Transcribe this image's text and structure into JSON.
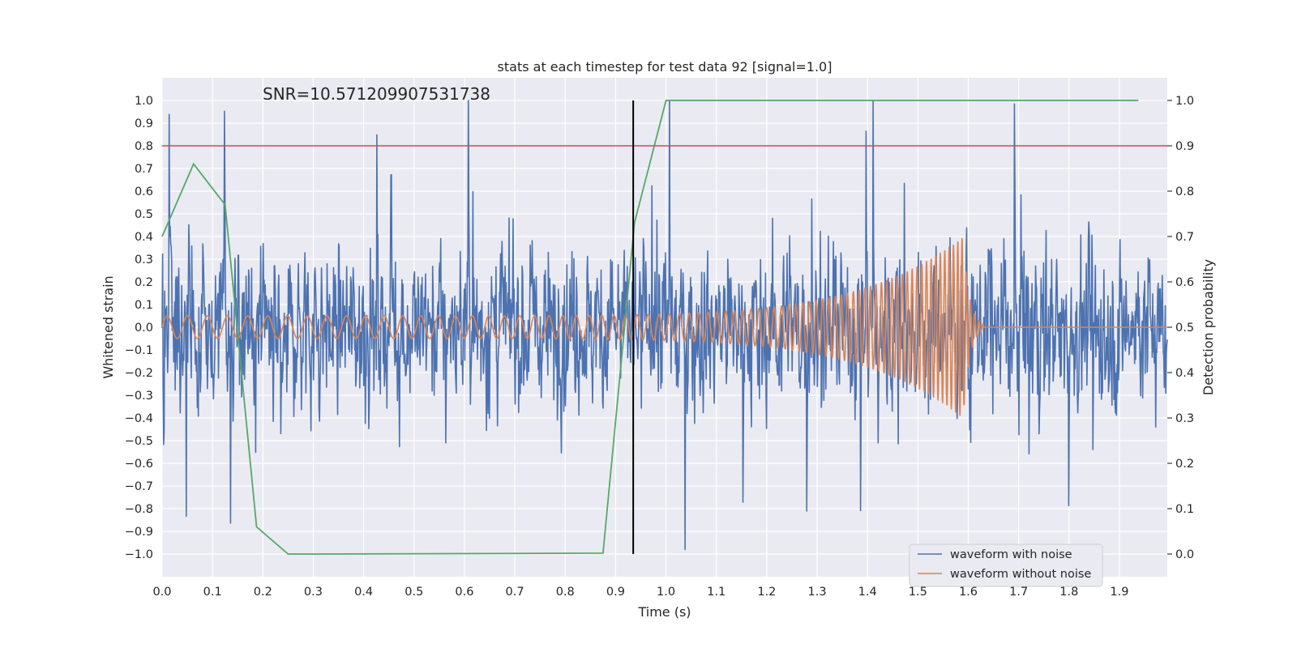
{
  "chart_data": {
    "type": "line",
    "title": "stats at each timestep for test data 92 [signal=1.0]",
    "annotation": "SNR=10.571209907531738",
    "xlabel": "Time (s)",
    "ylabel": "Whitened strain",
    "ylabel_right": "Detection probability",
    "xlim": [
      0.0,
      1.995
    ],
    "ylim": [
      -1.1,
      1.1
    ],
    "ylim_right": [
      -0.05,
      1.05
    ],
    "x_ticks": [
      "0.0",
      "0.1",
      "0.2",
      "0.3",
      "0.4",
      "0.5",
      "0.6",
      "0.7",
      "0.8",
      "0.9",
      "1.0",
      "1.1",
      "1.2",
      "1.3",
      "1.4",
      "1.5",
      "1.6",
      "1.7",
      "1.8",
      "1.9"
    ],
    "y_ticks": [
      "1.0",
      "0.9",
      "0.8",
      "0.7",
      "0.6",
      "0.5",
      "0.4",
      "0.3",
      "0.2",
      "0.1",
      "0.0",
      "−0.1",
      "−0.2",
      "−0.3",
      "−0.4",
      "−0.5",
      "−0.6",
      "−0.7",
      "−0.8",
      "−0.9",
      "−1.0"
    ],
    "y_ticks_right": [
      "1.0",
      "0.9",
      "0.8",
      "0.7",
      "0.6",
      "0.5",
      "0.4",
      "0.3",
      "0.2",
      "0.1",
      "0.0"
    ],
    "grid": true,
    "legend": {
      "location": "lower-right",
      "entries": [
        {
          "name": "waveform with noise",
          "color": "#4c72b0"
        },
        {
          "name": "waveform without noise",
          "color": "#dd8452"
        }
      ]
    },
    "threshold_line": {
      "y": 0.8,
      "axis": "left",
      "color": "#c44e52"
    },
    "vertical_marker": {
      "x": 0.935,
      "color": "#000000"
    },
    "series": [
      {
        "name": "waveform with noise",
        "axis": "left",
        "color": "#4c72b0",
        "generated": "dense noisy strain, approx. amplitude range −0.98 to 1.0 over 0–2 s"
      },
      {
        "name": "waveform without noise",
        "axis": "left",
        "color": "#dd8452",
        "generated": "chirp from ~25 Hz to ~120 Hz, amplitude growing from 0.05 to 0.4, merger at ~1.59 s, ringdown by ~1.63 s"
      },
      {
        "name": "detection probability",
        "axis": "right",
        "color": "#55a868",
        "x": [
          0.0,
          0.0625,
          0.125,
          0.1875,
          0.25,
          0.3125,
          0.875,
          0.9375,
          1.0,
          1.9375
        ],
        "values": [
          0.7,
          0.86,
          0.77,
          0.06,
          0.0,
          0.0,
          0.002,
          0.73,
          1.0,
          1.0
        ]
      }
    ],
    "colors": {
      "plot_background": "#eaeaf2",
      "grid": "#ffffff",
      "text": "#262626"
    }
  }
}
